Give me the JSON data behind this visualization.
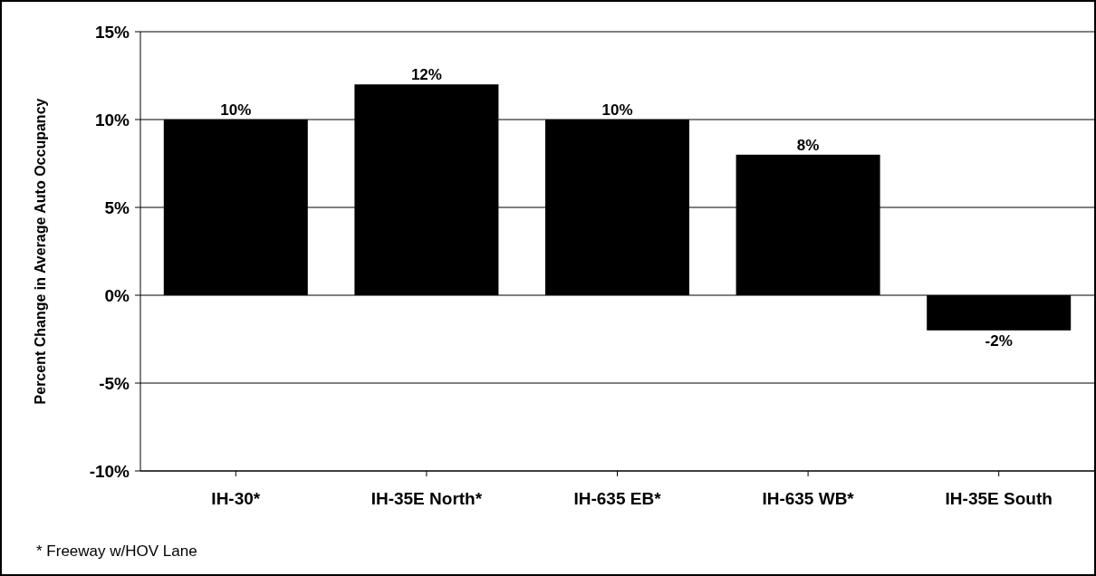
{
  "chart_data": {
    "type": "bar",
    "ylabel": "Percent Change in Average Auto Occupancy",
    "categories": [
      "IH-30*",
      "IH-35E North*",
      "IH-635 EB*",
      "IH-635 WB*",
      "IH-35E South"
    ],
    "values": [
      10,
      12,
      10,
      8,
      -2
    ],
    "color": "#000000",
    "value_labels": [
      "10%",
      "12%",
      "10%",
      "8%",
      "-2%"
    ],
    "ylim": [
      -10,
      15
    ],
    "yticks": [
      {
        "value": -10,
        "label": "-10%"
      },
      {
        "value": -5,
        "label": "-5%"
      },
      {
        "value": 0,
        "label": "0%"
      },
      {
        "value": 5,
        "label": "5%"
      },
      {
        "value": 10,
        "label": "10%"
      },
      {
        "value": 15,
        "label": "15%"
      }
    ],
    "grid": "y",
    "annotations": [
      "* Freeway w/HOV Lane"
    ]
  }
}
